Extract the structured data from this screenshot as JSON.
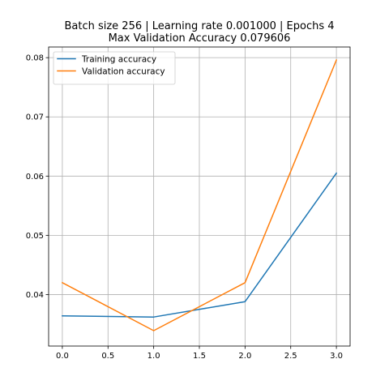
{
  "chart_data": {
    "type": "line",
    "title_lines": [
      "Batch size 256 | Learning rate 0.001000 | Epochs 4",
      "Max Validation Accuracy 0.079606"
    ],
    "xlabel": "",
    "ylabel": "",
    "x": [
      0,
      1,
      2,
      3
    ],
    "xlim": [
      -0.15,
      3.15
    ],
    "ylim": [
      0.0313,
      0.0818
    ],
    "xticks": [
      0.0,
      0.5,
      1.0,
      1.5,
      2.0,
      2.5,
      3.0
    ],
    "xtick_labels": [
      "0.0",
      "0.5",
      "1.0",
      "1.5",
      "2.0",
      "2.5",
      "3.0"
    ],
    "yticks": [
      0.04,
      0.05,
      0.06,
      0.07,
      0.08
    ],
    "ytick_labels": [
      "0.04",
      "0.05",
      "0.06",
      "0.07",
      "0.08"
    ],
    "grid": true,
    "legend_position": "top-left",
    "series": [
      {
        "name": "Training accuracy",
        "color": "#1f77b4",
        "values": [
          0.0364,
          0.0362,
          0.0388,
          0.0605
        ]
      },
      {
        "name": "Validation accuracy",
        "color": "#ff7f0e",
        "values": [
          0.042,
          0.0339,
          0.042,
          0.0796
        ]
      }
    ]
  }
}
